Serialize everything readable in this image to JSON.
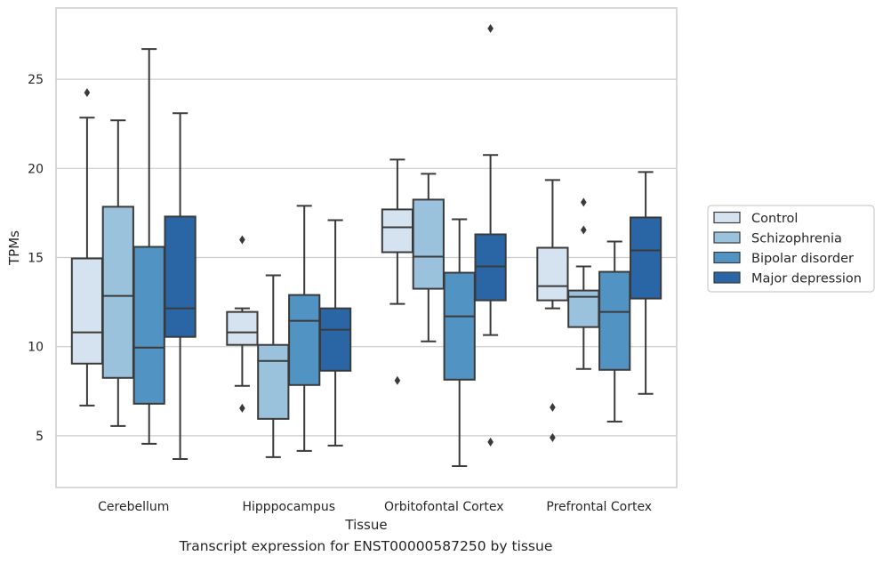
{
  "caption": "Transcript expression for ENST00000587250 by tissue",
  "chart_data": {
    "type": "box",
    "xlabel": "Tissue",
    "ylabel": "TPMs",
    "ylim": [
      2.1,
      29.0
    ],
    "yticks": [
      5,
      10,
      15,
      20,
      25
    ],
    "grid": "horizontal",
    "legend_position": "outside-right",
    "categories": [
      "Cerebellum",
      "Hipppocampus",
      "Orbitofontal Cortex",
      "Prefrontal Cortex"
    ],
    "series": [
      {
        "name": "Control",
        "color": "#d5e3f1",
        "boxes": [
          {
            "whislo": 6.7,
            "q1": 9.05,
            "med": 10.8,
            "q3": 14.95,
            "whishi": 22.85,
            "fliers": [
              24.25
            ]
          },
          {
            "whislo": 7.8,
            "q1": 10.1,
            "med": 10.8,
            "q3": 11.95,
            "whishi": 12.15,
            "fliers": [
              16.0,
              6.55
            ]
          },
          {
            "whislo": 12.4,
            "q1": 15.3,
            "med": 16.7,
            "q3": 17.7,
            "whishi": 20.5,
            "fliers": [
              8.1
            ]
          },
          {
            "whislo": 12.15,
            "q1": 12.6,
            "med": 13.4,
            "q3": 15.55,
            "whishi": 19.35,
            "fliers": [
              6.6,
              4.9
            ]
          }
        ]
      },
      {
        "name": "Schizophrenia",
        "color": "#9ac2dc",
        "boxes": [
          {
            "whislo": 5.55,
            "q1": 8.25,
            "med": 12.85,
            "q3": 17.85,
            "whishi": 22.7,
            "fliers": []
          },
          {
            "whislo": 3.8,
            "q1": 5.95,
            "med": 9.2,
            "q3": 10.1,
            "whishi": 14.0,
            "fliers": []
          },
          {
            "whislo": 10.3,
            "q1": 13.25,
            "med": 15.05,
            "q3": 18.25,
            "whishi": 19.7,
            "fliers": []
          },
          {
            "whislo": 8.75,
            "q1": 11.1,
            "med": 12.8,
            "q3": 13.15,
            "whishi": 14.5,
            "fliers": [
              18.1,
              16.55
            ]
          }
        ]
      },
      {
        "name": "Bipolar disorder",
        "color": "#5193c3",
        "boxes": [
          {
            "whislo": 4.55,
            "q1": 6.8,
            "med": 9.95,
            "q3": 15.6,
            "whishi": 26.7,
            "fliers": []
          },
          {
            "whislo": 4.15,
            "q1": 7.85,
            "med": 11.45,
            "q3": 12.9,
            "whishi": 17.9,
            "fliers": []
          },
          {
            "whislo": 3.3,
            "q1": 8.15,
            "med": 11.7,
            "q3": 14.15,
            "whishi": 17.15,
            "fliers": []
          },
          {
            "whislo": 5.8,
            "q1": 8.7,
            "med": 11.95,
            "q3": 14.2,
            "whishi": 15.9,
            "fliers": []
          }
        ]
      },
      {
        "name": "Major depression",
        "color": "#2a66a6",
        "boxes": [
          {
            "whislo": 3.7,
            "q1": 10.55,
            "med": 12.15,
            "q3": 17.3,
            "whishi": 23.1,
            "fliers": []
          },
          {
            "whislo": 4.45,
            "q1": 8.65,
            "med": 10.95,
            "q3": 12.15,
            "whishi": 17.1,
            "fliers": []
          },
          {
            "whislo": 10.65,
            "q1": 12.6,
            "med": 14.5,
            "q3": 16.3,
            "whishi": 20.75,
            "fliers": [
              4.65,
              27.85
            ]
          },
          {
            "whislo": 7.35,
            "q1": 12.7,
            "med": 15.4,
            "q3": 17.25,
            "whishi": 19.8,
            "fliers": []
          }
        ]
      }
    ]
  }
}
